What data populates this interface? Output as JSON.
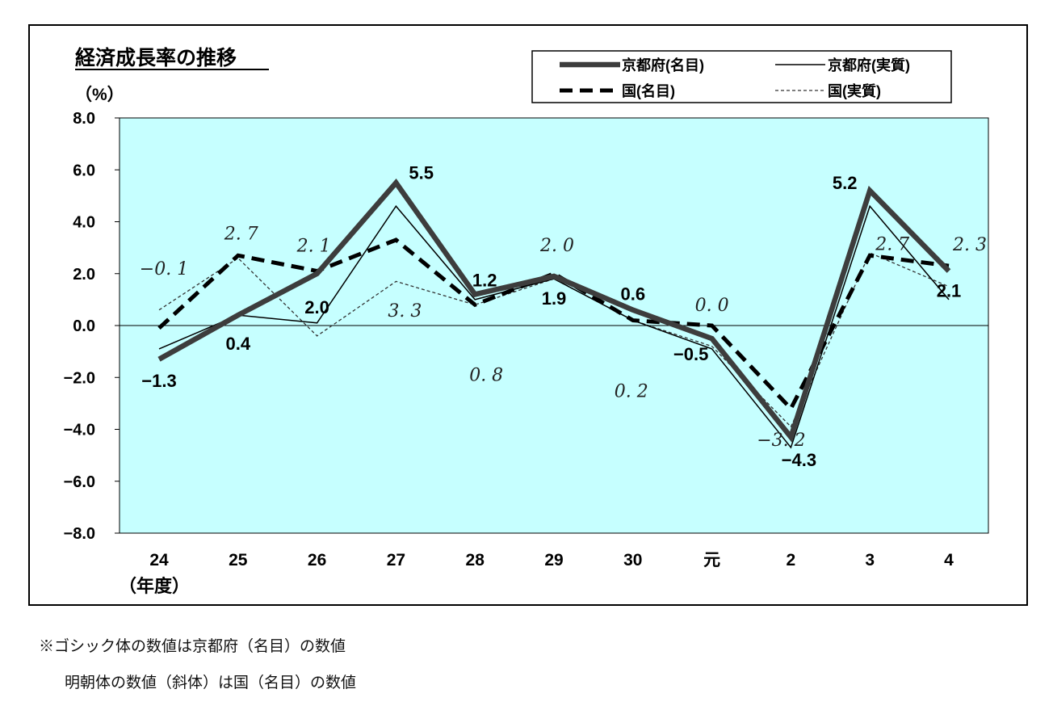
{
  "chart_data": {
    "type": "line",
    "title": "経済成長率の推移",
    "y_unit": "（%）",
    "x_unit": "（年度）",
    "ylim": [
      -8,
      8
    ],
    "y_ticks": [
      "8.0",
      "6.0",
      "4.0",
      "2.0",
      "0.0",
      "−2.0",
      "−4.0",
      "−6.0",
      "−8.0"
    ],
    "y_tick_values": [
      8,
      6,
      4,
      2,
      0,
      -2,
      -4,
      -6,
      -8
    ],
    "categories": [
      "24",
      "25",
      "26",
      "27",
      "28",
      "29",
      "30",
      "元",
      "2",
      "3",
      "4"
    ],
    "grid": false,
    "plot_background": "#c6ffff",
    "legend_position": "top-right",
    "series": [
      {
        "name": "京都府(名目)",
        "style": "thick-solid",
        "color": "#3d3d3d",
        "values": [
          -1.3,
          0.4,
          2.0,
          5.5,
          1.2,
          1.9,
          0.6,
          -0.5,
          -4.3,
          5.2,
          2.1
        ]
      },
      {
        "name": "京都府(実質)",
        "style": "thin-solid",
        "color": "#000000",
        "values": [
          -0.9,
          0.4,
          0.1,
          4.6,
          1.0,
          1.8,
          0.2,
          -0.9,
          -4.7,
          4.6,
          1.0
        ]
      },
      {
        "name": "国(名目)",
        "style": "thick-dashed",
        "color": "#000000",
        "values": [
          -0.1,
          2.7,
          2.1,
          3.3,
          0.8,
          2.0,
          0.2,
          0.0,
          -3.2,
          2.7,
          2.3
        ]
      },
      {
        "name": "国(実質)",
        "style": "thin-dashed",
        "color": "#333333",
        "values": [
          0.6,
          2.6,
          -0.4,
          1.7,
          0.8,
          1.8,
          0.2,
          -0.8,
          -3.9,
          2.8,
          1.5
        ]
      }
    ],
    "labels_kyoto_nominal": [
      "−1.3",
      "0.4",
      "2.0",
      "5.5",
      "1.2",
      "1.9",
      "0.6",
      "−0.5",
      "−4.3",
      "5.2",
      "2.1"
    ],
    "labels_national_nominal": [
      "−0. 1",
      "2. 7",
      "2. 1",
      "3. 3",
      "0. 8",
      "2. 0",
      "0. 2",
      "0. 0",
      "−3. 2",
      "2. 7",
      "2. 3"
    ]
  },
  "notes": [
    "※ゴシック体の数値は京都府（名目）の数値",
    "明朝体の数値（斜体）は国（名目）の数値"
  ]
}
